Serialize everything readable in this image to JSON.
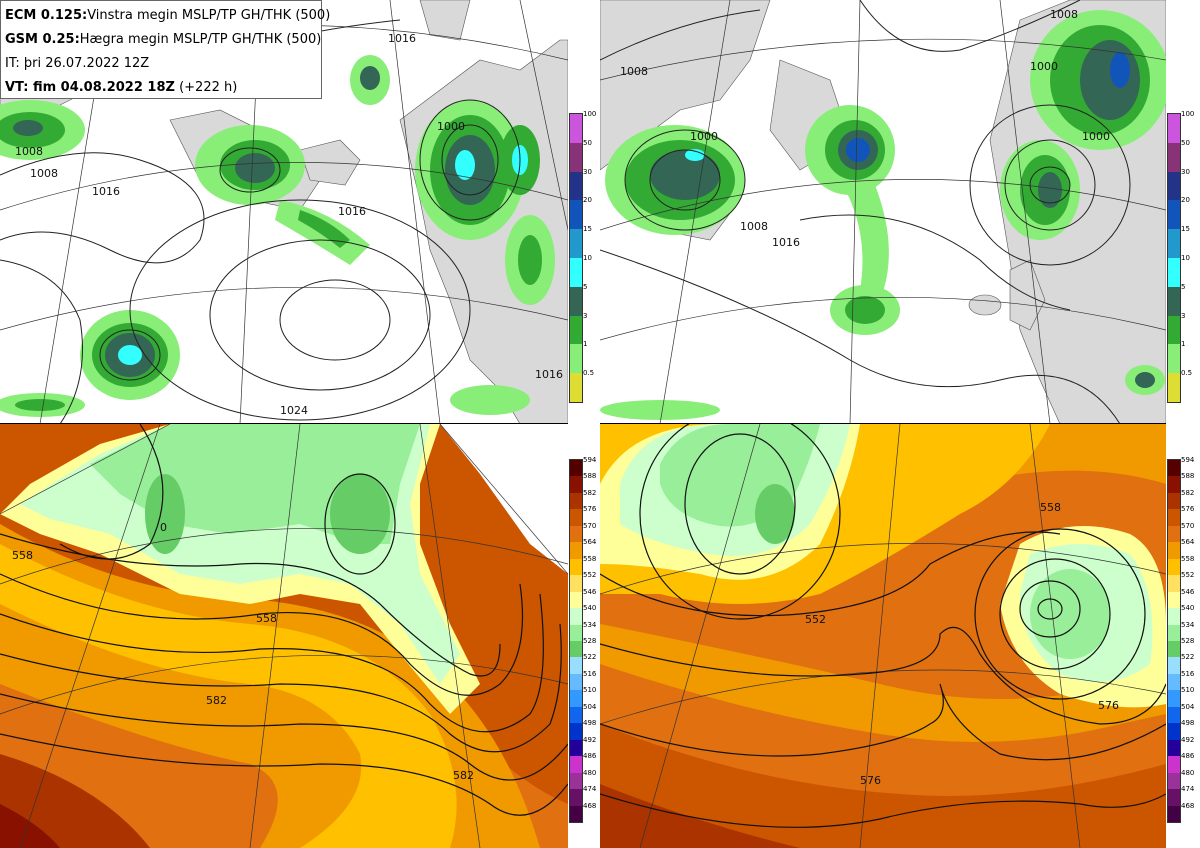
{
  "header": {
    "ecm_label": "ECM 0.125:",
    "ecm_text": "Vinstra megin MSLP/TP GH/THK (500)",
    "gsm_label": "GSM 0.25:",
    "gsm_text": "Hægra megin MSLP/TP GH/THK (500)",
    "it_text": "IT: þri 26.07.2022 12Z",
    "vt_label": "VT: fim 04.08.2022 18Z",
    "vt_text": "(+222 h)"
  },
  "precip_legend": {
    "levels": [
      "100",
      "50",
      "30",
      "20",
      "15",
      "10",
      "5",
      "3",
      "1",
      "0.5"
    ],
    "colors": [
      "#cc55dd",
      "#883377",
      "#223388",
      "#1155bb",
      "#2299cc",
      "#33ffff",
      "#336655",
      "#33aa33",
      "#88ee77",
      "#dddd33"
    ]
  },
  "thickness_legend": {
    "levels": [
      "594",
      "588",
      "582",
      "576",
      "570",
      "564",
      "558",
      "552",
      "546",
      "540",
      "534",
      "528",
      "522",
      "516",
      "510",
      "504",
      "498",
      "492",
      "486",
      "480",
      "474",
      "468"
    ],
    "colors": [
      "#550000",
      "#881100",
      "#aa3300",
      "#cc5500",
      "#e07010",
      "#f09a00",
      "#ffc000",
      "#ffe060",
      "#ffff99",
      "#ccffcc",
      "#99ee99",
      "#66cc66",
      "#99ddff",
      "#66bbff",
      "#3399ff",
      "#1166ee",
      "#0033cc",
      "#220099",
      "#cc33cc",
      "#993399",
      "#661166",
      "#440044"
    ]
  },
  "contour_labels": {
    "tl": [
      "1016",
      "1008",
      "1016",
      "1000",
      "1008",
      "1016",
      "1024",
      "1016"
    ],
    "tr": [
      "1008",
      "1008",
      "1000",
      "1008",
      "1016",
      "1000",
      "1000"
    ],
    "bl": [
      "558",
      "0",
      "558",
      "582",
      "582"
    ],
    "br": [
      "552",
      "576",
      "576",
      "558"
    ]
  }
}
